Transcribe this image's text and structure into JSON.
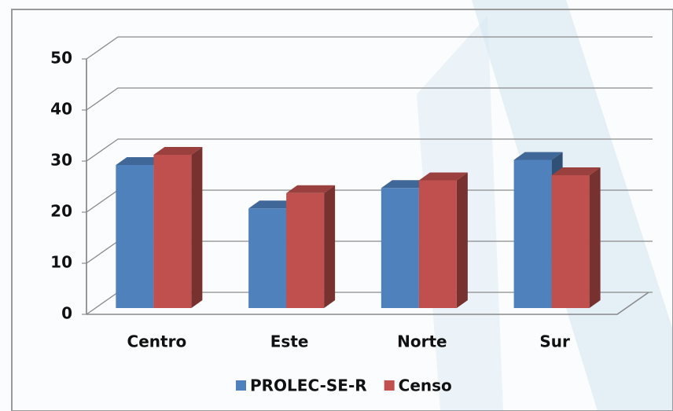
{
  "chart_data": {
    "type": "bar3d",
    "categories": [
      "Centro",
      "Este",
      "Norte",
      "Sur"
    ],
    "series": [
      {
        "name": "PROLEC-SE-R",
        "color": "#4f81bd",
        "values": [
          28,
          19.5,
          23.5,
          29
        ]
      },
      {
        "name": "Censo",
        "color": "#c0504d",
        "values": [
          30,
          22.5,
          25,
          26
        ]
      }
    ],
    "ylim": [
      0,
      50
    ],
    "yticks": [
      0,
      10,
      20,
      30,
      40,
      50
    ],
    "grid": true,
    "legend": "bottom"
  }
}
